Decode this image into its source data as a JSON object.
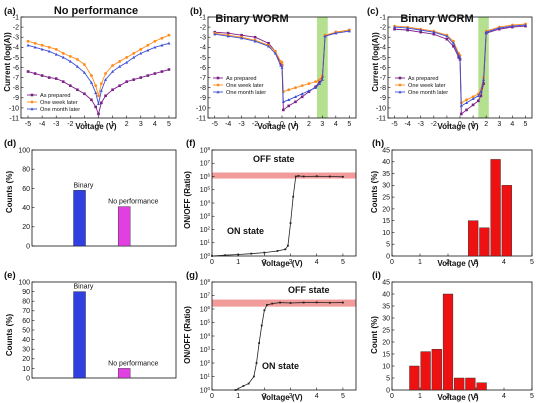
{
  "colors": {
    "as_prepared": "#7b1f86",
    "one_week": "#ff8c1a",
    "one_month": "#3d4fd6",
    "binary_bar": "#2f3fe0",
    "noperf_bar": "#e040e0",
    "hist_bar": "#ee1111",
    "off_band": "#f08a8a",
    "window_band": "#9bd66b"
  },
  "chart_data": [
    {
      "id": "a",
      "type": "line",
      "panel_label": "(a)",
      "title": "No performance",
      "xlabel": "Voltage (V)",
      "ylabel": "Current (log(A))",
      "xlim": [
        -5.5,
        5.5
      ],
      "ylim": [
        -11,
        -1
      ],
      "xticks": [
        -5,
        -4,
        -3,
        -2,
        -1,
        0,
        1,
        2,
        3,
        4,
        5
      ],
      "yticks": [
        -1,
        -2,
        -3,
        -4,
        -5,
        -6,
        -7,
        -8,
        -9,
        -10,
        -11
      ],
      "legend": [
        "As prepared",
        "One week later",
        "One month later"
      ],
      "legend_position": "bottom-left",
      "series": [
        {
          "name": "As prepared",
          "x": [
            -5,
            -4.5,
            -4,
            -3.5,
            -3,
            -2.5,
            -2,
            -1.5,
            -1,
            -0.5,
            -0.2,
            0,
            0.2,
            0.5,
            1,
            1.5,
            2,
            2.5,
            3,
            3.5,
            4,
            4.5,
            5
          ],
          "y": [
            -6.4,
            -6.6,
            -6.8,
            -7,
            -7.1,
            -7.4,
            -7.8,
            -8.2,
            -8.6,
            -9.2,
            -9.9,
            -10.6,
            -9.5,
            -8.8,
            -8.2,
            -7.8,
            -7.4,
            -7.2,
            -7,
            -6.8,
            -6.6,
            -6.4,
            -6.2
          ]
        },
        {
          "name": "One week later",
          "x": [
            -5,
            -4.5,
            -4,
            -3.5,
            -3,
            -2.5,
            -2,
            -1.5,
            -1,
            -0.5,
            -0.2,
            0,
            0.2,
            0.5,
            1,
            1.5,
            2,
            2.5,
            3,
            3.5,
            4,
            4.5,
            5
          ],
          "y": [
            -3.4,
            -3.6,
            -3.8,
            -4,
            -4.2,
            -4.6,
            -4.9,
            -5.2,
            -5.7,
            -6.8,
            -7.8,
            -8.8,
            -7.6,
            -6.6,
            -5.8,
            -5.4,
            -5,
            -4.6,
            -4.2,
            -3.8,
            -3.4,
            -3.1,
            -2.8
          ]
        },
        {
          "name": "One month later",
          "x": [
            -5,
            -4.5,
            -4,
            -3.5,
            -3,
            -2.5,
            -2,
            -1.5,
            -1,
            -0.5,
            -0.2,
            0,
            0.2,
            0.5,
            1,
            1.5,
            2,
            2.5,
            3,
            3.5,
            4,
            4.5,
            5
          ],
          "y": [
            -3.8,
            -4,
            -4.2,
            -4.4,
            -4.7,
            -5,
            -5.4,
            -5.9,
            -6.5,
            -7.5,
            -8.5,
            -9.6,
            -8.3,
            -7.2,
            -6.4,
            -5.9,
            -5.5,
            -5,
            -4.6,
            -4.3,
            -4,
            -3.8,
            -3.6
          ]
        }
      ]
    },
    {
      "id": "b",
      "type": "line",
      "panel_label": "(b)",
      "title": "Binary WORM",
      "xlabel": "Voltage (V)",
      "ylabel": "",
      "xlim": [
        -5.5,
        5.5
      ],
      "ylim": [
        -11,
        -1
      ],
      "xticks": [
        -5,
        -4,
        -3,
        -2,
        -1,
        0,
        1,
        2,
        3,
        4,
        5
      ],
      "yticks": [
        -1,
        -2,
        -3,
        -4,
        -5,
        -6,
        -7,
        -8,
        -9,
        -10,
        -11
      ],
      "highlight_x": [
        2.6,
        3.4
      ],
      "legend": [
        "As prepared",
        "One week later",
        "One month later"
      ],
      "legend_position": "bottom-left",
      "series": [
        {
          "name": "As prepared",
          "x": [
            -5,
            -4,
            -3,
            -2,
            -1,
            -0.5,
            -0.1,
            0,
            0.1,
            0.5,
            1,
            1.5,
            2,
            2.5,
            2.8,
            3,
            3.2,
            4,
            5
          ],
          "y": [
            -2.5,
            -2.6,
            -2.8,
            -3,
            -3.6,
            -4.4,
            -5.6,
            -5.8,
            -10.2,
            -9.8,
            -9.4,
            -8.9,
            -8.4,
            -7.9,
            -7.4,
            -6.9,
            -2.9,
            -2.5,
            -2.3
          ]
        },
        {
          "name": "One week later",
          "x": [
            -5,
            -4,
            -3,
            -2,
            -1,
            -0.5,
            -0.1,
            0,
            0.1,
            0.5,
            1,
            1.5,
            2,
            2.5,
            2.8,
            3,
            3.2,
            4,
            5
          ],
          "y": [
            -2.6,
            -2.8,
            -3,
            -3.3,
            -3.8,
            -4.4,
            -5.4,
            -5.5,
            -8.4,
            -8.2,
            -8,
            -7.8,
            -7.6,
            -7.4,
            -7.2,
            -6.8,
            -2.8,
            -2.5,
            -2.3
          ]
        },
        {
          "name": "One month later",
          "x": [
            -5,
            -4,
            -3,
            -2,
            -1,
            -0.5,
            -0.1,
            0,
            0.1,
            0.5,
            1,
            1.5,
            2,
            2.5,
            2.8,
            3,
            3.2,
            4,
            5
          ],
          "y": [
            -2.7,
            -2.9,
            -3.1,
            -3.4,
            -3.9,
            -4.6,
            -5.8,
            -6,
            -9.4,
            -9.2,
            -8.9,
            -8.6,
            -8.3,
            -8,
            -7.6,
            -7.2,
            -2.9,
            -2.6,
            -2.4
          ]
        }
      ]
    },
    {
      "id": "c",
      "type": "line",
      "panel_label": "(c)",
      "title": "Binary WORM",
      "xlabel": "Voltage (V)",
      "ylabel": "Current (log(A))",
      "xlim": [
        -5.5,
        5.5
      ],
      "ylim": [
        -11,
        -1
      ],
      "xticks": [
        -5,
        -4,
        -3,
        -2,
        -1,
        0,
        1,
        2,
        3,
        4,
        5
      ],
      "yticks": [
        -1,
        -2,
        -3,
        -4,
        -5,
        -6,
        -7,
        -8,
        -9,
        -10,
        -11
      ],
      "highlight_x": [
        1.4,
        2.2
      ],
      "legend": [
        "As prepared",
        "One week later",
        "One month later"
      ],
      "legend_position": "bottom-left",
      "series": [
        {
          "name": "As prepared",
          "x": [
            -5,
            -4,
            -3,
            -2,
            -1,
            -0.5,
            -0.1,
            0,
            0.1,
            0.5,
            1,
            1.4,
            1.6,
            1.8,
            2,
            3,
            4,
            5
          ],
          "y": [
            -2.2,
            -2.3,
            -2.5,
            -2.7,
            -3.2,
            -3.9,
            -5,
            -5.2,
            -10.6,
            -10.2,
            -9.7,
            -9.3,
            -8.8,
            -7.6,
            -2.6,
            -2.2,
            -2,
            -1.9
          ]
        },
        {
          "name": "One week later",
          "x": [
            -5,
            -4,
            -3,
            -2,
            -1,
            -0.5,
            -0.1,
            0,
            0.1,
            0.5,
            1,
            1.4,
            1.6,
            1.8,
            2,
            3,
            4,
            5
          ],
          "y": [
            -1.9,
            -2,
            -2.2,
            -2.4,
            -2.8,
            -3.4,
            -4.6,
            -4.8,
            -9.5,
            -9.2,
            -8.9,
            -8.6,
            -8.2,
            -7,
            -2.4,
            -2,
            -1.8,
            -1.7
          ]
        },
        {
          "name": "One month later",
          "x": [
            -5,
            -4,
            -3,
            -2,
            -1,
            -0.5,
            -0.1,
            0,
            0.1,
            0.5,
            1,
            1.4,
            1.6,
            1.8,
            2,
            3,
            4,
            5
          ],
          "y": [
            -2,
            -2.1,
            -2.3,
            -2.5,
            -2.9,
            -3.6,
            -4.8,
            -5,
            -9.8,
            -9.5,
            -9.1,
            -8.8,
            -8.4,
            -7.2,
            -2.5,
            -2.1,
            -1.9,
            -1.8
          ]
        }
      ]
    },
    {
      "id": "d",
      "type": "bar",
      "panel_label": "(d)",
      "xlabel": "",
      "ylabel": "Counts (%)",
      "categories": [
        "Binary",
        "No performance"
      ],
      "values": [
        58,
        41
      ],
      "ylim": [
        0,
        100
      ],
      "yticks": [
        0,
        20,
        40,
        60,
        80,
        100
      ]
    },
    {
      "id": "e",
      "type": "bar",
      "panel_label": "(e)",
      "xlabel": "",
      "ylabel": "Counts (%)",
      "categories": [
        "Binary",
        "No performance"
      ],
      "values": [
        90,
        10
      ],
      "ylim": [
        0,
        100
      ],
      "yticks": [
        0,
        10,
        20,
        30,
        40,
        50,
        60,
        70,
        80,
        90,
        100
      ]
    },
    {
      "id": "f",
      "type": "line",
      "panel_label": "(f)",
      "xlabel": "Voltage (V)",
      "ylabel": "ON/OFF (Ratio)",
      "yscale": "log",
      "xlim": [
        0,
        5.5
      ],
      "ylim": [
        1,
        100000000
      ],
      "xticks": [
        0,
        1,
        2,
        3,
        4,
        5
      ],
      "ytick_exponents": [
        0,
        1,
        2,
        3,
        4,
        5,
        6,
        7,
        8
      ],
      "off_band_ratio": [
        700000,
        2000000
      ],
      "annotations": [
        "OFF state",
        "ON state"
      ],
      "series": [
        {
          "x": [
            0,
            0.5,
            1,
            1.5,
            2,
            2.5,
            2.8,
            2.9,
            3,
            3.1,
            3.2,
            3.3,
            3.5,
            4,
            4.5,
            5
          ],
          "y": [
            1,
            1.15,
            1.3,
            1.5,
            1.8,
            2.4,
            3.2,
            6,
            300,
            30000,
            1000000,
            1100000,
            1000000,
            1050000,
            1000000,
            950000
          ]
        }
      ]
    },
    {
      "id": "g",
      "type": "line",
      "panel_label": "(g)",
      "xlabel": "Voltage (V)",
      "ylabel": "ON/OFF (Ratio)",
      "yscale": "log",
      "xlim": [
        0,
        5.5
      ],
      "ylim": [
        1,
        100000000
      ],
      "xticks": [
        0,
        1,
        2,
        3,
        4,
        5
      ],
      "ytick_exponents": [
        0,
        1,
        2,
        3,
        4,
        5,
        6,
        7,
        8
      ],
      "off_band_ratio": [
        1500000,
        5000000
      ],
      "annotations": [
        "OFF state",
        "ON state"
      ],
      "series": [
        {
          "x": [
            0.9,
            1.2,
            1.4,
            1.6,
            1.7,
            1.8,
            1.9,
            2,
            2.1,
            2.3,
            2.6,
            3,
            3.5,
            4,
            4.5,
            5
          ],
          "y": [
            1,
            2,
            3,
            10,
            100,
            3000,
            60000,
            800000,
            2000000,
            2500000,
            3000000,
            2800000,
            3000000,
            3100000,
            2900000,
            3000000
          ]
        }
      ]
    },
    {
      "id": "h",
      "type": "bar",
      "panel_label": "(h)",
      "xlabel": "Voltage (V)",
      "ylabel": "Counts (%)",
      "xlim": [
        0,
        5
      ],
      "ylim": [
        0,
        45
      ],
      "xticks": [
        0,
        1,
        2,
        3,
        4,
        5
      ],
      "yticks": [
        0,
        5,
        10,
        15,
        20,
        25,
        30,
        35,
        40,
        45
      ],
      "x": [
        2.9,
        3.3,
        3.7,
        4.1
      ],
      "values": [
        15,
        12,
        41,
        30
      ],
      "bar_width": 0.35
    },
    {
      "id": "i",
      "type": "bar",
      "panel_label": "(i)",
      "xlabel": "Voltage (V)",
      "ylabel": "Count (%)",
      "xlim": [
        0,
        5
      ],
      "ylim": [
        0,
        45
      ],
      "xticks": [
        0,
        1,
        2,
        3,
        4,
        5
      ],
      "yticks": [
        0,
        5,
        10,
        15,
        20,
        25,
        30,
        35,
        40,
        45
      ],
      "x": [
        0.8,
        1.2,
        1.6,
        2.0,
        2.4,
        2.8,
        3.2,
        3.6
      ],
      "values": [
        10,
        16,
        17,
        40,
        5,
        5,
        3,
        0
      ],
      "bar_width": 0.35
    }
  ]
}
